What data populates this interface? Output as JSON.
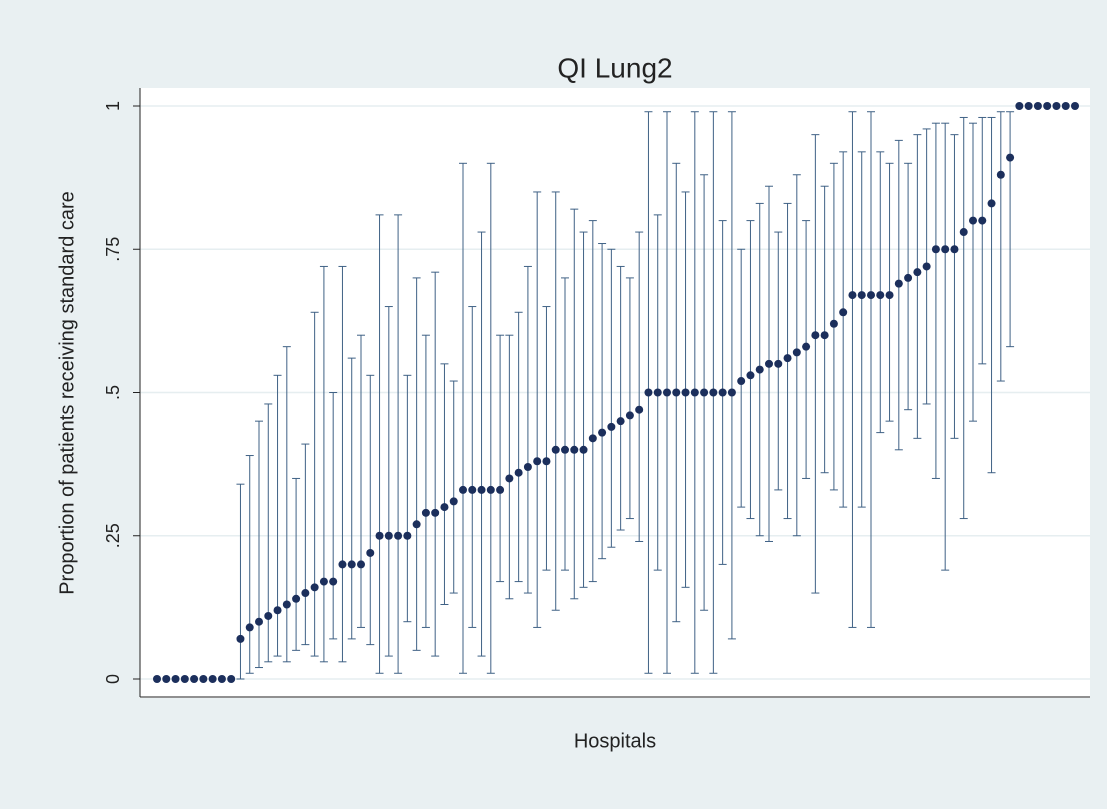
{
  "chart_data": {
    "type": "caterpillar",
    "title": "QI Lung2",
    "x_label": "Hospitals",
    "y_label": "Proportion of patients receiving standard care",
    "ylim": [
      0,
      1
    ],
    "yticks": [
      0,
      {
        "value": 0.25,
        "label": ".25"
      },
      {
        "value": 0.5,
        "label": ".5"
      },
      {
        "value": 0.75,
        "label": ".75"
      },
      1
    ],
    "grid": true,
    "point_color": "#1c2f5c",
    "ci_color": "#3f6185",
    "values": [
      0,
      0,
      0,
      0,
      0,
      0,
      0,
      0,
      0,
      0.07,
      0.09,
      0.1,
      0.11,
      0.12,
      0.13,
      0.14,
      0.15,
      0.16,
      0.17,
      0.17,
      0.2,
      0.2,
      0.2,
      0.22,
      0.25,
      0.25,
      0.25,
      0.25,
      0.27,
      0.29,
      0.29,
      0.3,
      0.31,
      0.33,
      0.33,
      0.33,
      0.33,
      0.33,
      0.35,
      0.36,
      0.37,
      0.38,
      0.38,
      0.4,
      0.4,
      0.4,
      0.4,
      0.42,
      0.43,
      0.44,
      0.45,
      0.46,
      0.47,
      0.5,
      0.5,
      0.5,
      0.5,
      0.5,
      0.5,
      0.5,
      0.5,
      0.5,
      0.5,
      0.52,
      0.53,
      0.54,
      0.55,
      0.55,
      0.56,
      0.57,
      0.58,
      0.6,
      0.6,
      0.62,
      0.64,
      0.67,
      0.67,
      0.67,
      0.67,
      0.67,
      0.69,
      0.7,
      0.71,
      0.72,
      0.75,
      0.75,
      0.75,
      0.78,
      0.8,
      0.8,
      0.83,
      0.88,
      0.91,
      1,
      1,
      1,
      1,
      1,
      1,
      1
    ],
    "ci_lower": [
      null,
      null,
      null,
      null,
      null,
      null,
      null,
      null,
      null,
      0.0,
      0.01,
      0.02,
      0.03,
      0.04,
      0.03,
      0.05,
      0.06,
      0.04,
      0.03,
      0.07,
      0.03,
      0.07,
      0.09,
      0.06,
      0.01,
      0.04,
      0.01,
      0.1,
      0.05,
      0.09,
      0.04,
      0.13,
      0.15,
      0.01,
      0.09,
      0.04,
      0.01,
      0.17,
      0.14,
      0.17,
      0.15,
      0.09,
      0.19,
      0.12,
      0.19,
      0.14,
      0.16,
      0.17,
      0.21,
      0.23,
      0.26,
      0.28,
      0.24,
      0.01,
      0.19,
      0.01,
      0.1,
      0.16,
      0.01,
      0.12,
      0.01,
      0.2,
      0.07,
      0.3,
      0.28,
      0.25,
      0.24,
      0.33,
      0.28,
      0.25,
      0.35,
      0.15,
      0.36,
      0.33,
      0.3,
      0.09,
      0.3,
      0.09,
      0.43,
      0.45,
      0.4,
      0.47,
      0.42,
      0.48,
      0.35,
      0.19,
      0.42,
      0.28,
      0.45,
      0.55,
      0.36,
      0.52,
      0.58,
      null,
      null,
      null,
      null,
      null,
      null,
      null
    ],
    "ci_upper": [
      null,
      null,
      null,
      null,
      null,
      null,
      null,
      null,
      null,
      0.34,
      0.39,
      0.45,
      0.48,
      0.53,
      0.58,
      0.35,
      0.41,
      0.64,
      0.72,
      0.5,
      0.72,
      0.56,
      0.6,
      0.53,
      0.81,
      0.65,
      0.81,
      0.53,
      0.7,
      0.6,
      0.71,
      0.55,
      0.52,
      0.9,
      0.65,
      0.78,
      0.9,
      0.6,
      0.6,
      0.64,
      0.72,
      0.85,
      0.65,
      0.85,
      0.7,
      0.82,
      0.78,
      0.8,
      0.76,
      0.75,
      0.72,
      0.7,
      0.78,
      0.99,
      0.81,
      0.99,
      0.9,
      0.85,
      0.99,
      0.88,
      0.99,
      0.8,
      0.99,
      0.75,
      0.8,
      0.83,
      0.86,
      0.78,
      0.83,
      0.88,
      0.8,
      0.95,
      0.86,
      0.9,
      0.92,
      0.99,
      0.92,
      0.99,
      0.92,
      0.9,
      0.94,
      0.9,
      0.95,
      0.96,
      0.97,
      0.97,
      0.95,
      0.98,
      0.97,
      0.98,
      0.98,
      0.99,
      0.99,
      null,
      null,
      null,
      null,
      null,
      null,
      null
    ]
  }
}
